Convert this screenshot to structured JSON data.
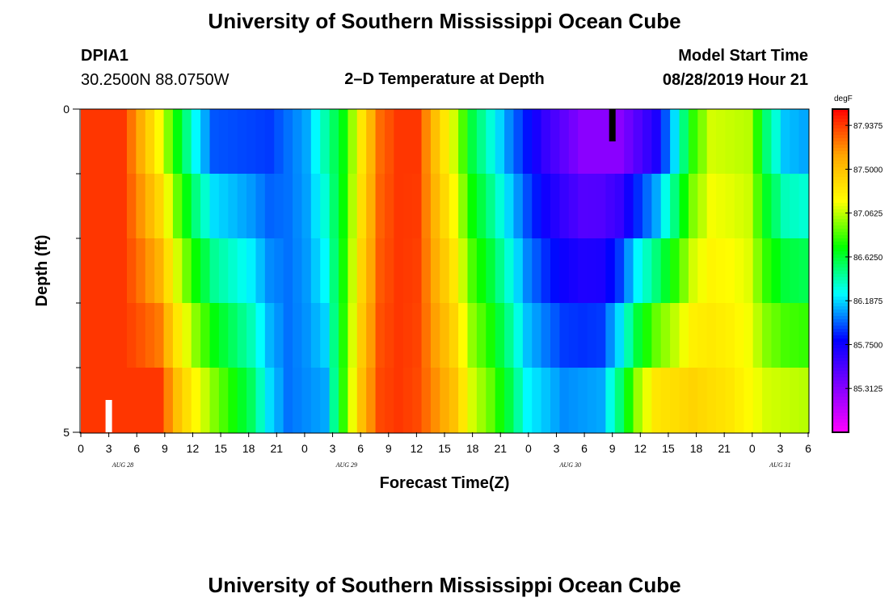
{
  "header": {
    "main_title": "University of Southern Mississippi Ocean Cube",
    "station": "DPIA1",
    "coords": "30.2500N 88.0750W",
    "subtitle": "2–D Temperature at Depth",
    "model_label": "Model Start Time",
    "model_time": "08/28/2019 Hour 21"
  },
  "footer": {
    "repeat_title": "University of Southern Mississippi Ocean Cube"
  },
  "chart_data": {
    "type": "heatmap",
    "xlabel": "Forecast Time(Z)",
    "ylabel": "Depth (ft)",
    "ylim": [
      0,
      5
    ],
    "y_tick_labels": [
      "0",
      "5"
    ],
    "x_tick_labels": [
      "0",
      "3",
      "6",
      "9",
      "12",
      "15",
      "18",
      "21",
      "0",
      "3",
      "6",
      "9",
      "12",
      "15",
      "18",
      "21",
      "0",
      "3",
      "6",
      "9",
      "12",
      "15",
      "18",
      "21",
      "0",
      "3",
      "6"
    ],
    "day_labels": [
      {
        "label": "AUG 28",
        "tick_index": 1.5
      },
      {
        "label": "AUG 29",
        "tick_index": 9.5
      },
      {
        "label": "AUG 30",
        "tick_index": 17.5
      },
      {
        "label": "AUG 31",
        "tick_index": 25
      }
    ],
    "colorbar": {
      "unit": "degF",
      "range": [
        84.875,
        88.1
      ],
      "tick_values": [
        87.9375,
        87.5,
        87.0625,
        86.625,
        86.1875,
        85.75,
        85.3125
      ],
      "tick_labels": [
        "87.9375",
        "87.5000",
        "87.0625",
        "86.6250",
        "86.1875",
        "85.7500",
        "85.3125"
      ],
      "colors_low_to_high": [
        "#ff00ff",
        "#8000ff",
        "#0000ff",
        "#00ffff",
        "#00ff00",
        "#ffff00",
        "#ffa500",
        "#ff0000"
      ]
    },
    "depth_rows": 5,
    "time_steps": 79,
    "temperature_profile_surface": [
      [
        0,
        87.95
      ],
      [
        4,
        87.95
      ],
      [
        6,
        87.6
      ],
      [
        8,
        87.2
      ],
      [
        10,
        86.7
      ],
      [
        12,
        86.25
      ],
      [
        14,
        85.95
      ],
      [
        20,
        85.9
      ],
      [
        24,
        86.1
      ],
      [
        28,
        86.7
      ],
      [
        30,
        87.3
      ],
      [
        32,
        87.8
      ],
      [
        34,
        87.95
      ],
      [
        36,
        87.95
      ],
      [
        38,
        87.5
      ],
      [
        40,
        87.1
      ],
      [
        42,
        86.6
      ],
      [
        46,
        86.05
      ],
      [
        50,
        85.6
      ],
      [
        54,
        85.3
      ],
      [
        58,
        85.3
      ],
      [
        62,
        85.7
      ],
      [
        64,
        86.2
      ],
      [
        66,
        86.8
      ],
      [
        68,
        87.1
      ],
      [
        72,
        87.05
      ],
      [
        74,
        86.5
      ],
      [
        76,
        86.15
      ],
      [
        78,
        86.1
      ]
    ],
    "temperature_profile_bottom": [
      [
        0,
        87.95
      ],
      [
        8,
        87.95
      ],
      [
        10,
        87.5
      ],
      [
        12,
        87.2
      ],
      [
        14,
        86.95
      ],
      [
        18,
        86.55
      ],
      [
        20,
        86.2
      ],
      [
        22,
        86.0
      ],
      [
        26,
        86.1
      ],
      [
        28,
        86.8
      ],
      [
        30,
        87.5
      ],
      [
        32,
        87.9
      ],
      [
        34,
        87.95
      ],
      [
        36,
        87.9
      ],
      [
        40,
        87.5
      ],
      [
        42,
        87.1
      ],
      [
        44,
        86.9
      ],
      [
        46,
        86.6
      ],
      [
        48,
        86.25
      ],
      [
        52,
        86.05
      ],
      [
        56,
        86.1
      ],
      [
        58,
        86.5
      ],
      [
        60,
        87.0
      ],
      [
        62,
        87.3
      ],
      [
        66,
        87.4
      ],
      [
        70,
        87.3
      ],
      [
        74,
        87.1
      ],
      [
        78,
        87.05
      ]
    ],
    "markers": [
      {
        "kind": "white",
        "time_hours": 3,
        "depth_ft": 5
      },
      {
        "kind": "black",
        "time_hours": 57,
        "depth_ft": 0
      }
    ]
  }
}
